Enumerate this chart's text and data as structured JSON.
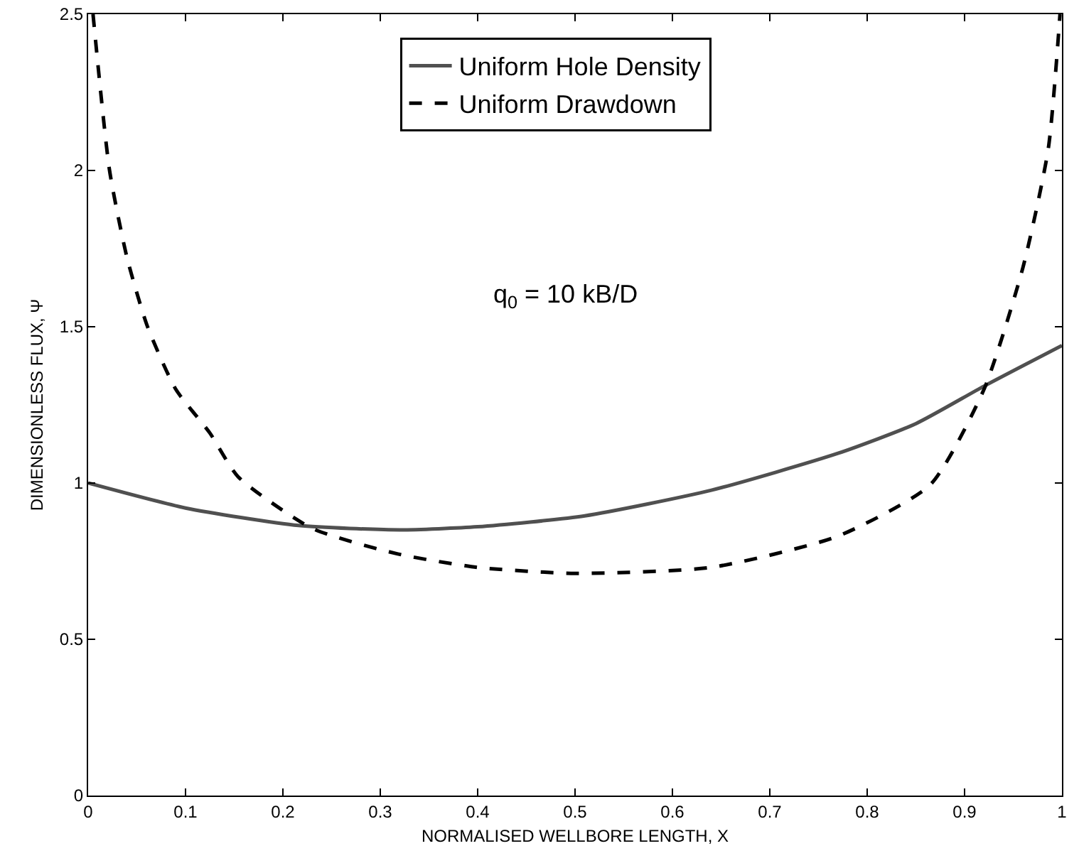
{
  "chart_data": {
    "type": "line",
    "xlabel": "NORMALISED WELLBORE LENGTH, X",
    "ylabel": "DIMENSIONLESS FLUX, Ψ",
    "xlim": [
      0,
      1
    ],
    "ylim": [
      0,
      2.5
    ],
    "xticks": [
      0,
      0.1,
      0.2,
      0.3,
      0.4,
      0.5,
      0.6,
      0.7,
      0.8,
      0.9,
      1
    ],
    "yticks": [
      0,
      0.5,
      1,
      1.5,
      2,
      2.5
    ],
    "grid": false,
    "legend": "top",
    "marker": "none",
    "annotations": [
      "q$_{0}$ = 10 kB/D"
    ],
    "series": [
      {
        "name": "Uniform Hole Density",
        "color": "#505050",
        "line_style": "solid",
        "x": [
          0,
          0.1,
          0.216,
          0.32,
          0.4,
          0.51,
          0.64,
          0.77,
          0.85,
          0.92,
          1
        ],
        "values": [
          1.0,
          0.92,
          0.864,
          0.85,
          0.86,
          0.895,
          0.977,
          1.095,
          1.19,
          1.31,
          1.44
        ]
      },
      {
        "name": "Uniform Drawdown",
        "color": "#000000",
        "line_style": "dashed",
        "x": [
          0.005,
          0.022,
          0.04,
          0.061,
          0.09,
          0.125,
          0.154,
          0.23,
          0.318,
          0.4,
          0.5,
          0.64,
          0.77,
          0.865,
          0.92,
          0.96,
          0.986,
          0.998
        ],
        "values": [
          2.5,
          2.0,
          1.72,
          1.5,
          1.3,
          1.16,
          1.02,
          0.855,
          0.773,
          0.73,
          0.711,
          0.73,
          0.83,
          0.995,
          1.3,
          1.69,
          2.07,
          2.5
        ]
      }
    ]
  }
}
